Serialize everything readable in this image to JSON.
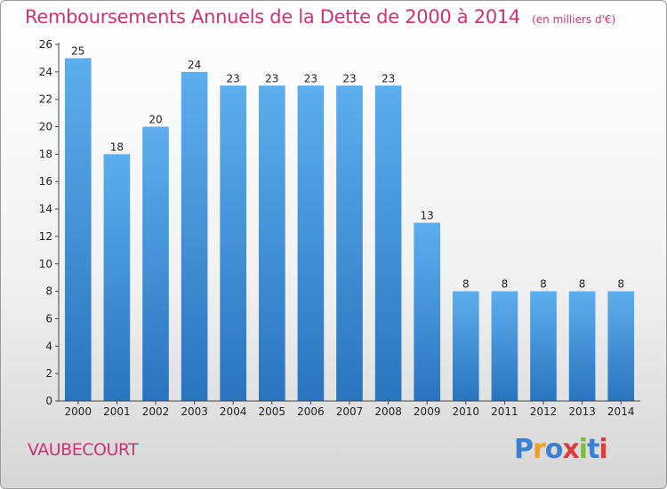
{
  "chart_data": {
    "type": "bar",
    "title": "Remboursements Annuels de la Dette de 2000 à 2014",
    "unit": "(en milliers d'€)",
    "categories": [
      "2000",
      "2001",
      "2002",
      "2003",
      "2004",
      "2005",
      "2006",
      "2007",
      "2008",
      "2009",
      "2010",
      "2011",
      "2012",
      "2013",
      "2014"
    ],
    "values": [
      25,
      18,
      20,
      24,
      23,
      23,
      23,
      23,
      23,
      13,
      8,
      8,
      8,
      8,
      8
    ],
    "ylim": [
      0,
      26
    ],
    "yticks": [
      0,
      2,
      4,
      6,
      8,
      10,
      12,
      14,
      16,
      18,
      20,
      22,
      24,
      26
    ],
    "grid": false,
    "bar_color": "#3b8fd9"
  },
  "commune": "VAUBECOURT",
  "logo": {
    "letters": [
      "P",
      "r",
      "o",
      "x",
      "i",
      "t",
      "i"
    ],
    "colors": [
      "#3a7fd0",
      "#f0a020",
      "#3a7fd0",
      "#e03c3c",
      "#7bbf3a",
      "#3a7fd0",
      "#e03c3c"
    ]
  }
}
